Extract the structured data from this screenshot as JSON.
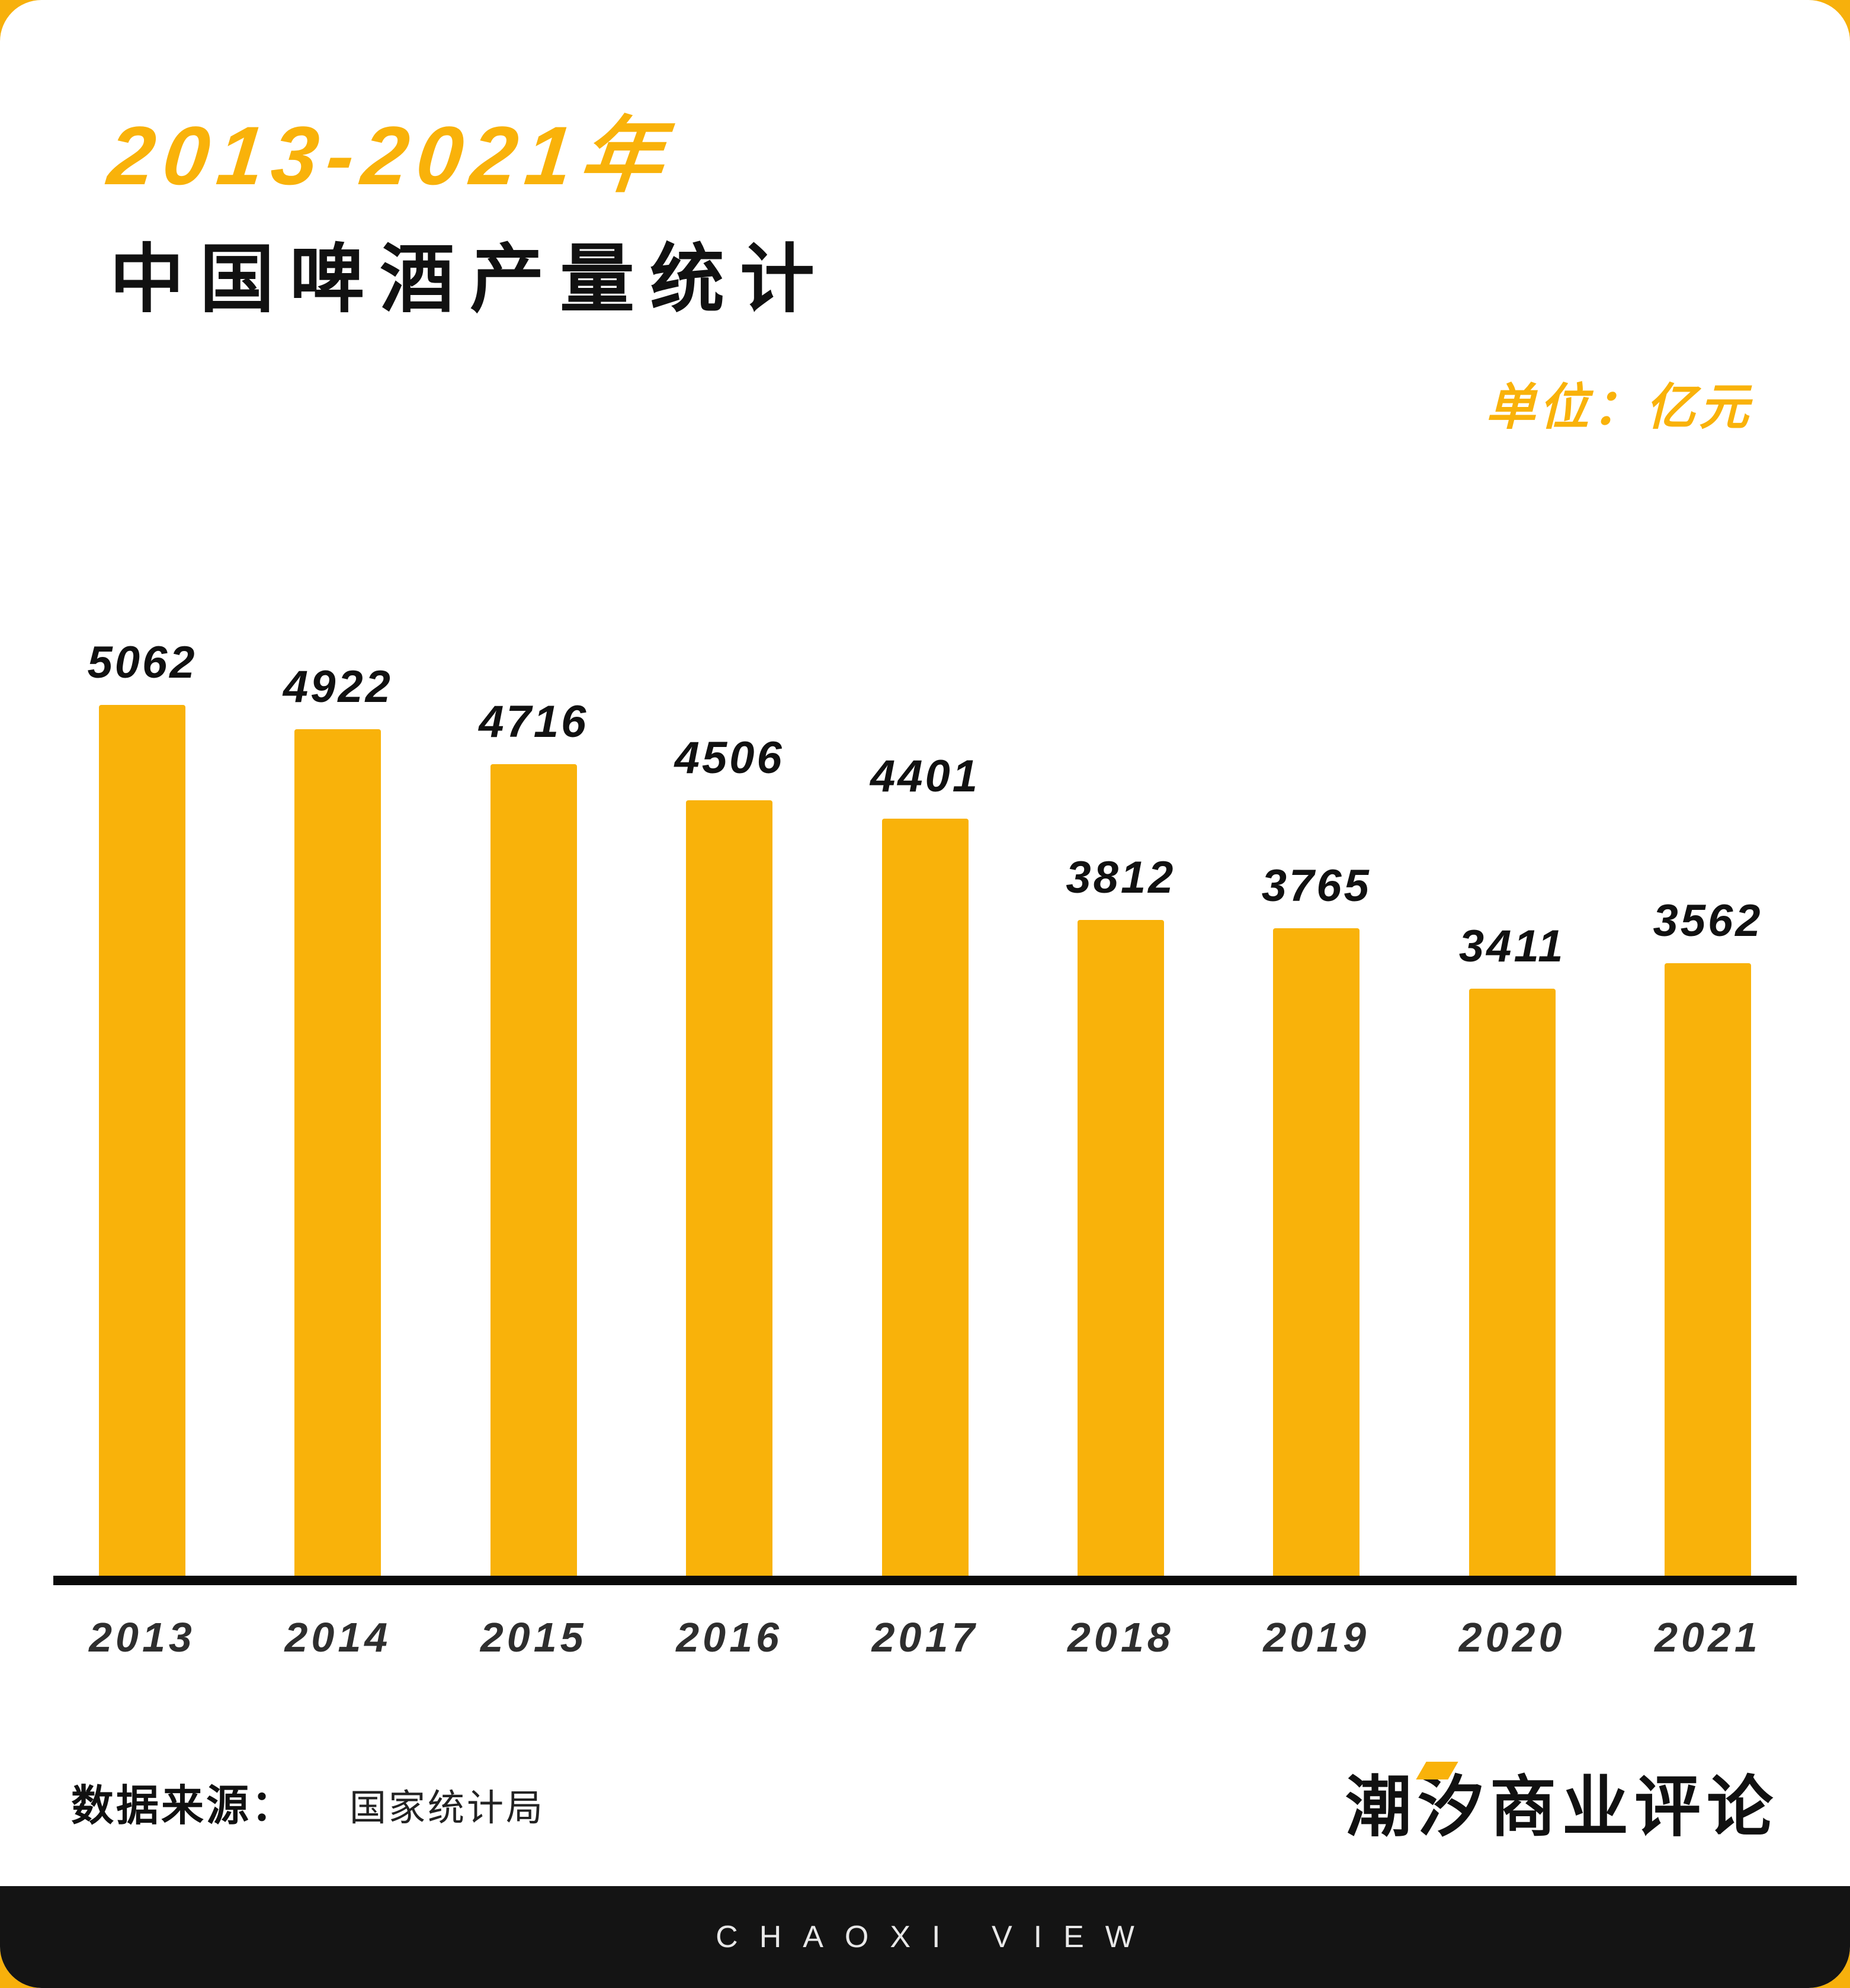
{
  "header": {
    "title_line1": "2013-2021年",
    "title_line2": "中国啤酒产量统计",
    "unit_label": "单位：亿元"
  },
  "chart_data": {
    "type": "bar",
    "title": "2013-2021年中国啤酒产量统计",
    "categories": [
      "2013",
      "2014",
      "2015",
      "2016",
      "2017",
      "2018",
      "2019",
      "2020",
      "2021"
    ],
    "values": [
      5062,
      4922,
      4716,
      4506,
      4401,
      3812,
      3765,
      3411,
      3562
    ],
    "unit": "亿元",
    "bar_color": "#F9B20A",
    "value_label_color": "#111111",
    "axis_color": "#0a0a0a",
    "grid": false,
    "legend": "none",
    "ylim": [
      0,
      5062
    ]
  },
  "footer": {
    "source_label": "数据来源：",
    "source_value": "国家统计局",
    "brand_logo": "潮汐商业评论",
    "band_text": "CHAOXI VIEW"
  },
  "colors": {
    "accent_yellow": "#F9B20A",
    "band_black": "#141414",
    "card_white": "#ffffff"
  }
}
